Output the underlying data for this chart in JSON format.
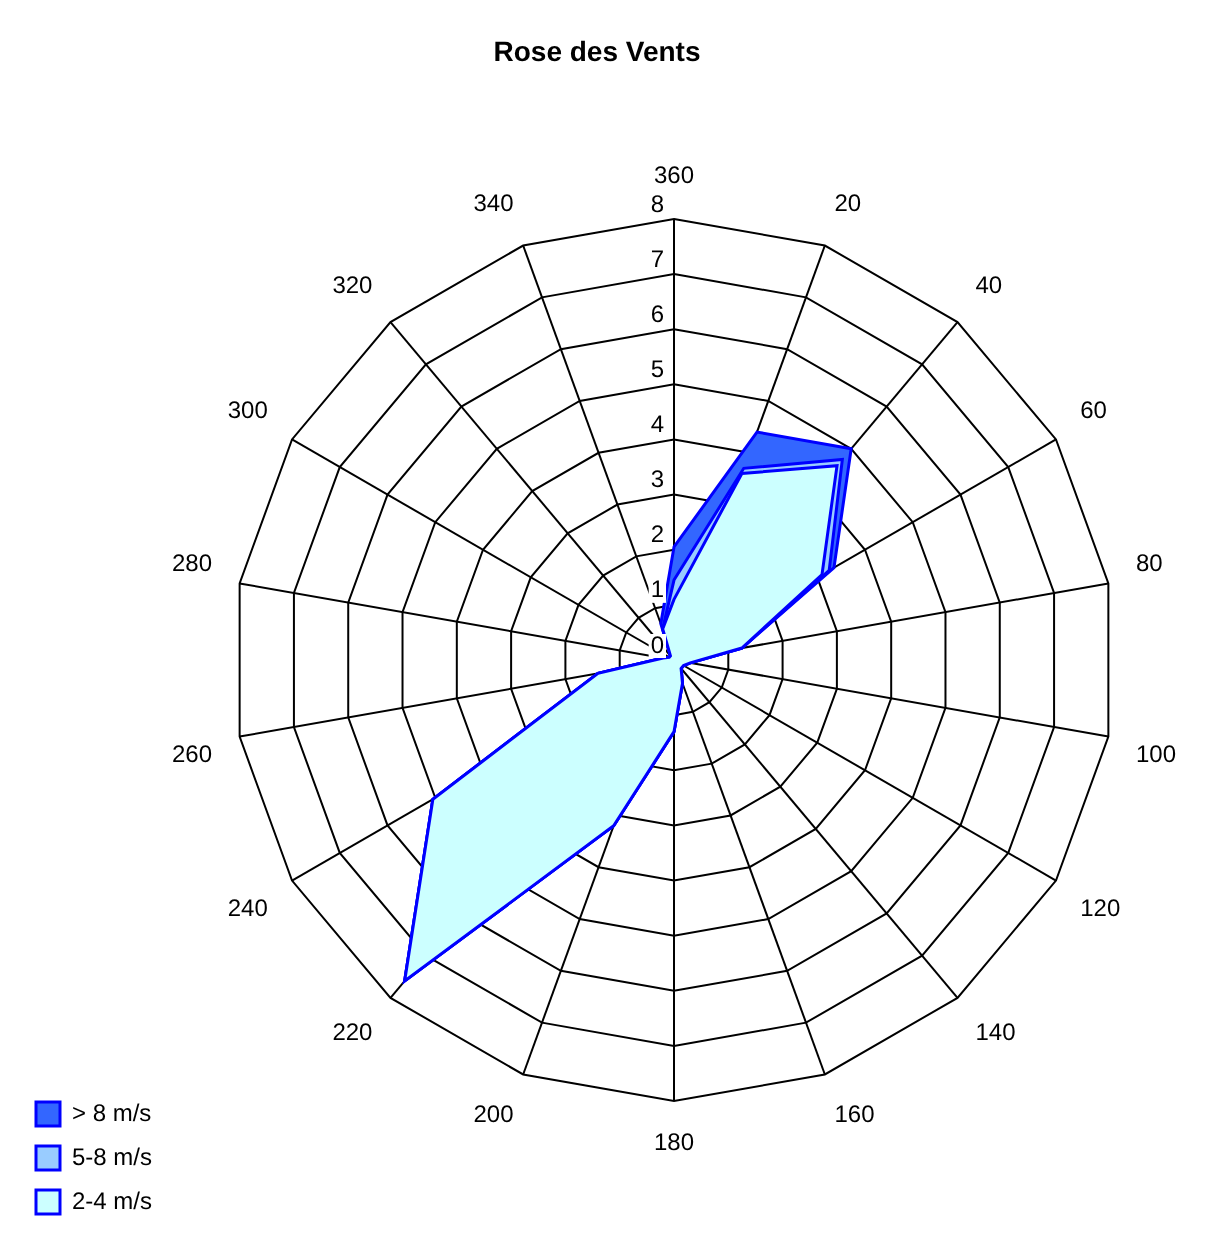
{
  "chart_data": {
    "type": "radar",
    "title": "Rose des Vents",
    "categories": [
      "360",
      "20",
      "40",
      "60",
      "80",
      "100",
      "120",
      "140",
      "160",
      "180",
      "200",
      "220",
      "240",
      "260",
      "280",
      "300",
      "320",
      "340"
    ],
    "series": [
      {
        "name": "> 8 m/s",
        "color": "#3366ff",
        "values": [
          2.05,
          4.4,
          5.0,
          3.35,
          1.25,
          0.3,
          0.2,
          0.2,
          0.45,
          1.3,
          3.2,
          7.6,
          5.05,
          1.4,
          0.2,
          0.1,
          0.1,
          0.7
        ]
      },
      {
        "name": "5-8 m/s",
        "color": "#99ccff",
        "values": [
          1.45,
          3.7,
          4.75,
          3.25,
          1.25,
          0.3,
          0.2,
          0.2,
          0.45,
          1.3,
          3.2,
          7.6,
          5.05,
          1.4,
          0.2,
          0.1,
          0.1,
          0.6
        ]
      },
      {
        "name": "2-4 m/s",
        "color": "#ccffff",
        "values": [
          1.1,
          3.6,
          4.6,
          3.1,
          1.25,
          0.3,
          0.2,
          0.2,
          0.45,
          1.3,
          3.2,
          7.6,
          5.05,
          1.4,
          0.2,
          0.1,
          0.1,
          0.6
        ]
      }
    ],
    "ylim": [
      0,
      8
    ],
    "yticks": [
      0,
      1,
      2,
      3,
      4,
      5,
      6,
      7,
      8
    ],
    "grid": true,
    "legend": "bottom left"
  }
}
